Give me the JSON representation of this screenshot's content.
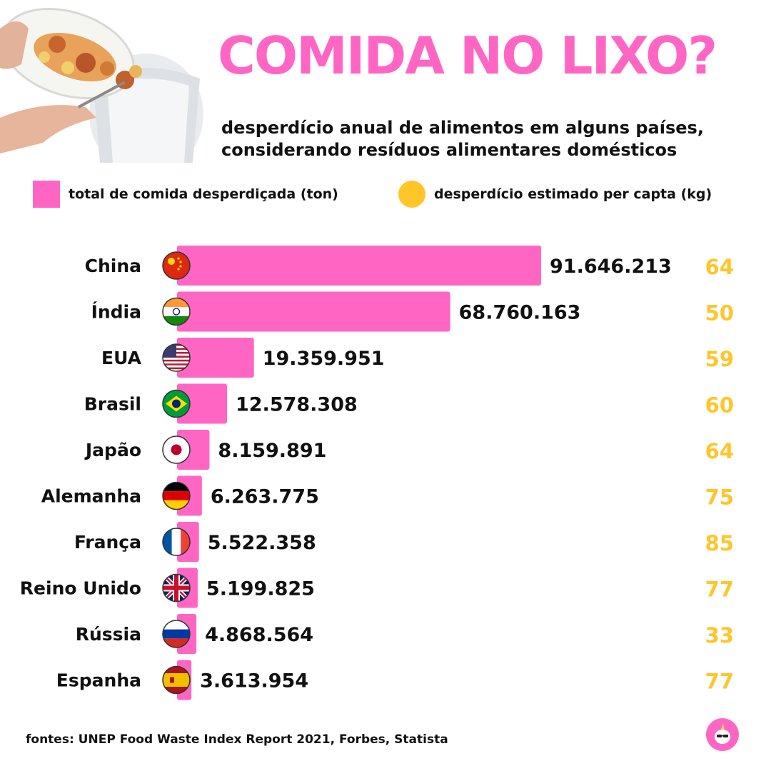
{
  "header": {
    "title": "COMIDA NO LIXO?",
    "subtitle_line1": "desperdício anual de alimentos em alguns países,",
    "subtitle_line2": "considerando resíduos alimentares domésticos"
  },
  "legend": {
    "total_label": "total de comida desperdiçada (ton)",
    "percap_label": "desperdício estimado per capta (kg)"
  },
  "colors": {
    "accent_pink": "#ff66c4",
    "accent_yellow": "#ffc529",
    "text": "#111111"
  },
  "chart_data": {
    "type": "bar",
    "orientation": "horizontal",
    "categories": [
      "China",
      "Índia",
      "EUA",
      "Brasil",
      "Japão",
      "Alemanha",
      "França",
      "Reino Unido",
      "Rússia",
      "Espanha"
    ],
    "value_labels": [
      "91.646.213",
      "68.760.163",
      "19.359.951",
      "12.578.308",
      "8.159.891",
      "6.263.775",
      "5.522.358",
      "5.199.825",
      "4.868.564",
      "3.613.954"
    ],
    "per_capita_labels": [
      "64",
      "50",
      "59",
      "60",
      "64",
      "75",
      "85",
      "77",
      "33",
      "77"
    ],
    "flags": [
      "china-flag-icon",
      "india-flag-icon",
      "usa-flag-icon",
      "brazil-flag-icon",
      "japan-flag-icon",
      "germany-flag-icon",
      "france-flag-icon",
      "uk-flag-icon",
      "russia-flag-icon",
      "spain-flag-icon"
    ],
    "series": [
      {
        "values": [
          91646213,
          68760163,
          19359951,
          12578308,
          8159891,
          6263775,
          5522358,
          5199825,
          4868564,
          3613954
        ]
      },
      {
        "values": [
          64,
          50,
          59,
          60,
          64,
          75,
          85,
          77,
          33,
          77
        ]
      }
    ],
    "xlim": [
      0,
      91646213
    ],
    "grid": false,
    "legend_position": "top"
  },
  "footer": {
    "sources": "fontes: UNEP Food Waste Index Report 2021, Forbes, Statista",
    "badge_icon": "unicorn-icon"
  }
}
